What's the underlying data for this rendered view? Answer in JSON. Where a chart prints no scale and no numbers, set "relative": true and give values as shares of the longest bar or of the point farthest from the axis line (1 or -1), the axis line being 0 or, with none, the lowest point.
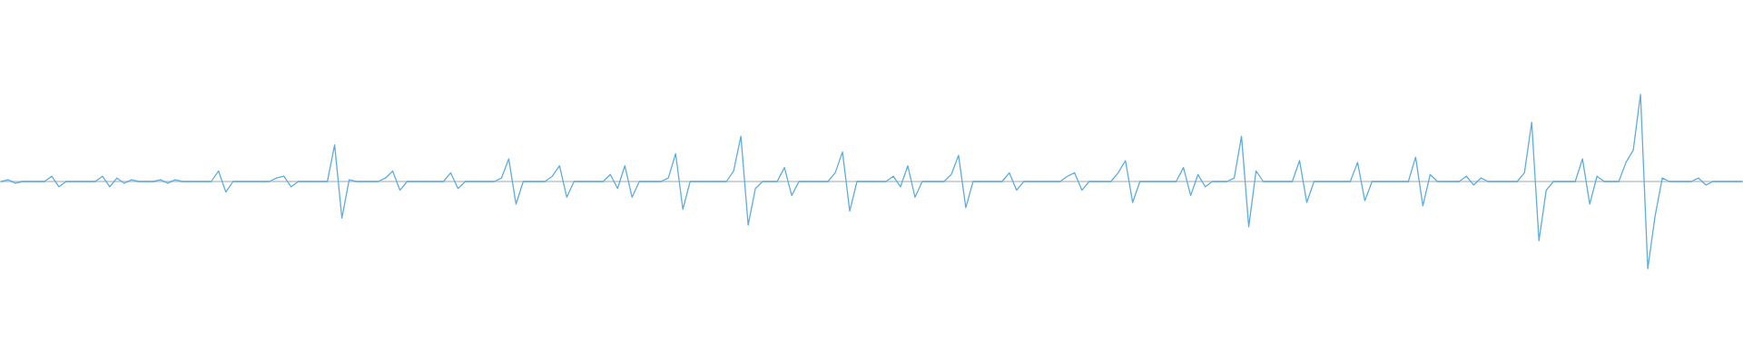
{
  "chart_data": {
    "type": "line",
    "relative": true,
    "color": "#5dade2",
    "categories": [
      null,
      null,
      null,
      null,
      null,
      null,
      null,
      null,
      null,
      null,
      null,
      null,
      null,
      null,
      null,
      null,
      null,
      null,
      null,
      null,
      null,
      null,
      null,
      null,
      null,
      null,
      null,
      null,
      null,
      null,
      null,
      null,
      null,
      null,
      null,
      null,
      null,
      null,
      null,
      null,
      null,
      null,
      null,
      null,
      null,
      null,
      null,
      null,
      null,
      null,
      null,
      null,
      null,
      null,
      null,
      null,
      null,
      null,
      null,
      null,
      null,
      null,
      null,
      null,
      null,
      null,
      null,
      null,
      null,
      null,
      null,
      null,
      null,
      null,
      null,
      null,
      null,
      null,
      null,
      null,
      null,
      null,
      null,
      null,
      null,
      null,
      null,
      null,
      null,
      null,
      null,
      null,
      null,
      null,
      null,
      null,
      null,
      null,
      null,
      null,
      null,
      null,
      null,
      null,
      null,
      null,
      null,
      null,
      null,
      null,
      null,
      null,
      null,
      null,
      null,
      null,
      null,
      null,
      null,
      null,
      null,
      null,
      null,
      null,
      null,
      null,
      null,
      null,
      null,
      null,
      null,
      null,
      null,
      null,
      null,
      null,
      null,
      null,
      null,
      null,
      null,
      null,
      null,
      null,
      null,
      null,
      null,
      null,
      null,
      null,
      null,
      null,
      null,
      null,
      null,
      null,
      null,
      null,
      null,
      null,
      null,
      null,
      null,
      null,
      null,
      null,
      null,
      null,
      null,
      null,
      null,
      null,
      null,
      null,
      null,
      null,
      null,
      null,
      null,
      null,
      null,
      null,
      null,
      null,
      null,
      null,
      null,
      null,
      null,
      null,
      null,
      null,
      null,
      null,
      null,
      null,
      null,
      null,
      null,
      null,
      null,
      null,
      null,
      null,
      null,
      null,
      null,
      null,
      null,
      null,
      null,
      null,
      null,
      null,
      null,
      null,
      null,
      null,
      null,
      null,
      null,
      null,
      null,
      null,
      null,
      null,
      null,
      null,
      null,
      null,
      null,
      null,
      null,
      null,
      null,
      null,
      null,
      null,
      null,
      null,
      null
    ],
    "values": [
      0,
      0.02,
      -0.02,
      0,
      0,
      0,
      0,
      0.06,
      -0.06,
      0,
      0,
      0,
      0,
      0,
      0.06,
      -0.06,
      0.04,
      -0.02,
      0.02,
      0,
      0,
      0,
      0.02,
      -0.02,
      0.02,
      0,
      0,
      0,
      0,
      0,
      0.12,
      -0.12,
      0,
      0,
      0,
      0,
      0,
      0,
      0.04,
      0.06,
      -0.06,
      0,
      0,
      0,
      0,
      0,
      0.42,
      -0.42,
      0.02,
      0,
      0,
      0,
      0,
      0.04,
      0.12,
      -0.1,
      0,
      0,
      0,
      0,
      0,
      0,
      0.1,
      -0.08,
      0,
      0,
      0,
      0,
      0,
      0.04,
      0.26,
      -0.26,
      0,
      0,
      0,
      0,
      0.06,
      0.18,
      -0.18,
      0,
      0,
      0,
      0,
      0,
      0.08,
      -0.08,
      0.18,
      -0.18,
      0,
      0,
      0,
      0,
      0.04,
      0.32,
      -0.32,
      0,
      0,
      0,
      0,
      0,
      0,
      0.12,
      0.52,
      -0.5,
      -0.08,
      0,
      0,
      0,
      0.16,
      -0.16,
      0,
      0,
      0,
      0,
      0,
      0.1,
      0.34,
      -0.34,
      0,
      0,
      0,
      0,
      0,
      0.06,
      -0.06,
      0.18,
      -0.18,
      0,
      0,
      0,
      0,
      0.08,
      0.3,
      -0.3,
      0,
      0,
      0,
      0,
      0,
      0.1,
      -0.1,
      0,
      0,
      0,
      0,
      0,
      0,
      0.06,
      0.1,
      -0.1,
      0,
      0,
      0,
      0,
      0.1,
      0.24,
      -0.24,
      0,
      0,
      0,
      0,
      0,
      0,
      0.16,
      -0.16,
      0.08,
      -0.06,
      0,
      0,
      0,
      0.04,
      0.52,
      -0.52,
      0.12,
      0,
      0,
      0,
      0,
      0,
      0.24,
      -0.24,
      0,
      0,
      0,
      0,
      0,
      0,
      0.22,
      -0.22,
      0,
      0,
      0,
      0,
      0,
      0,
      0.28,
      -0.28,
      0.08,
      0,
      0,
      0,
      0,
      0.06,
      -0.04,
      0.04,
      0,
      0,
      0,
      0,
      0,
      0.1,
      0.68,
      -0.68,
      -0.1,
      0,
      0,
      0,
      0,
      0.26,
      -0.26,
      0.06,
      0,
      0,
      0,
      0.22,
      0.36,
      1,
      -1,
      -0.4,
      0.04,
      0,
      0,
      0,
      0,
      0.04,
      -0.04,
      0,
      0,
      0,
      0,
      0
    ]
  }
}
